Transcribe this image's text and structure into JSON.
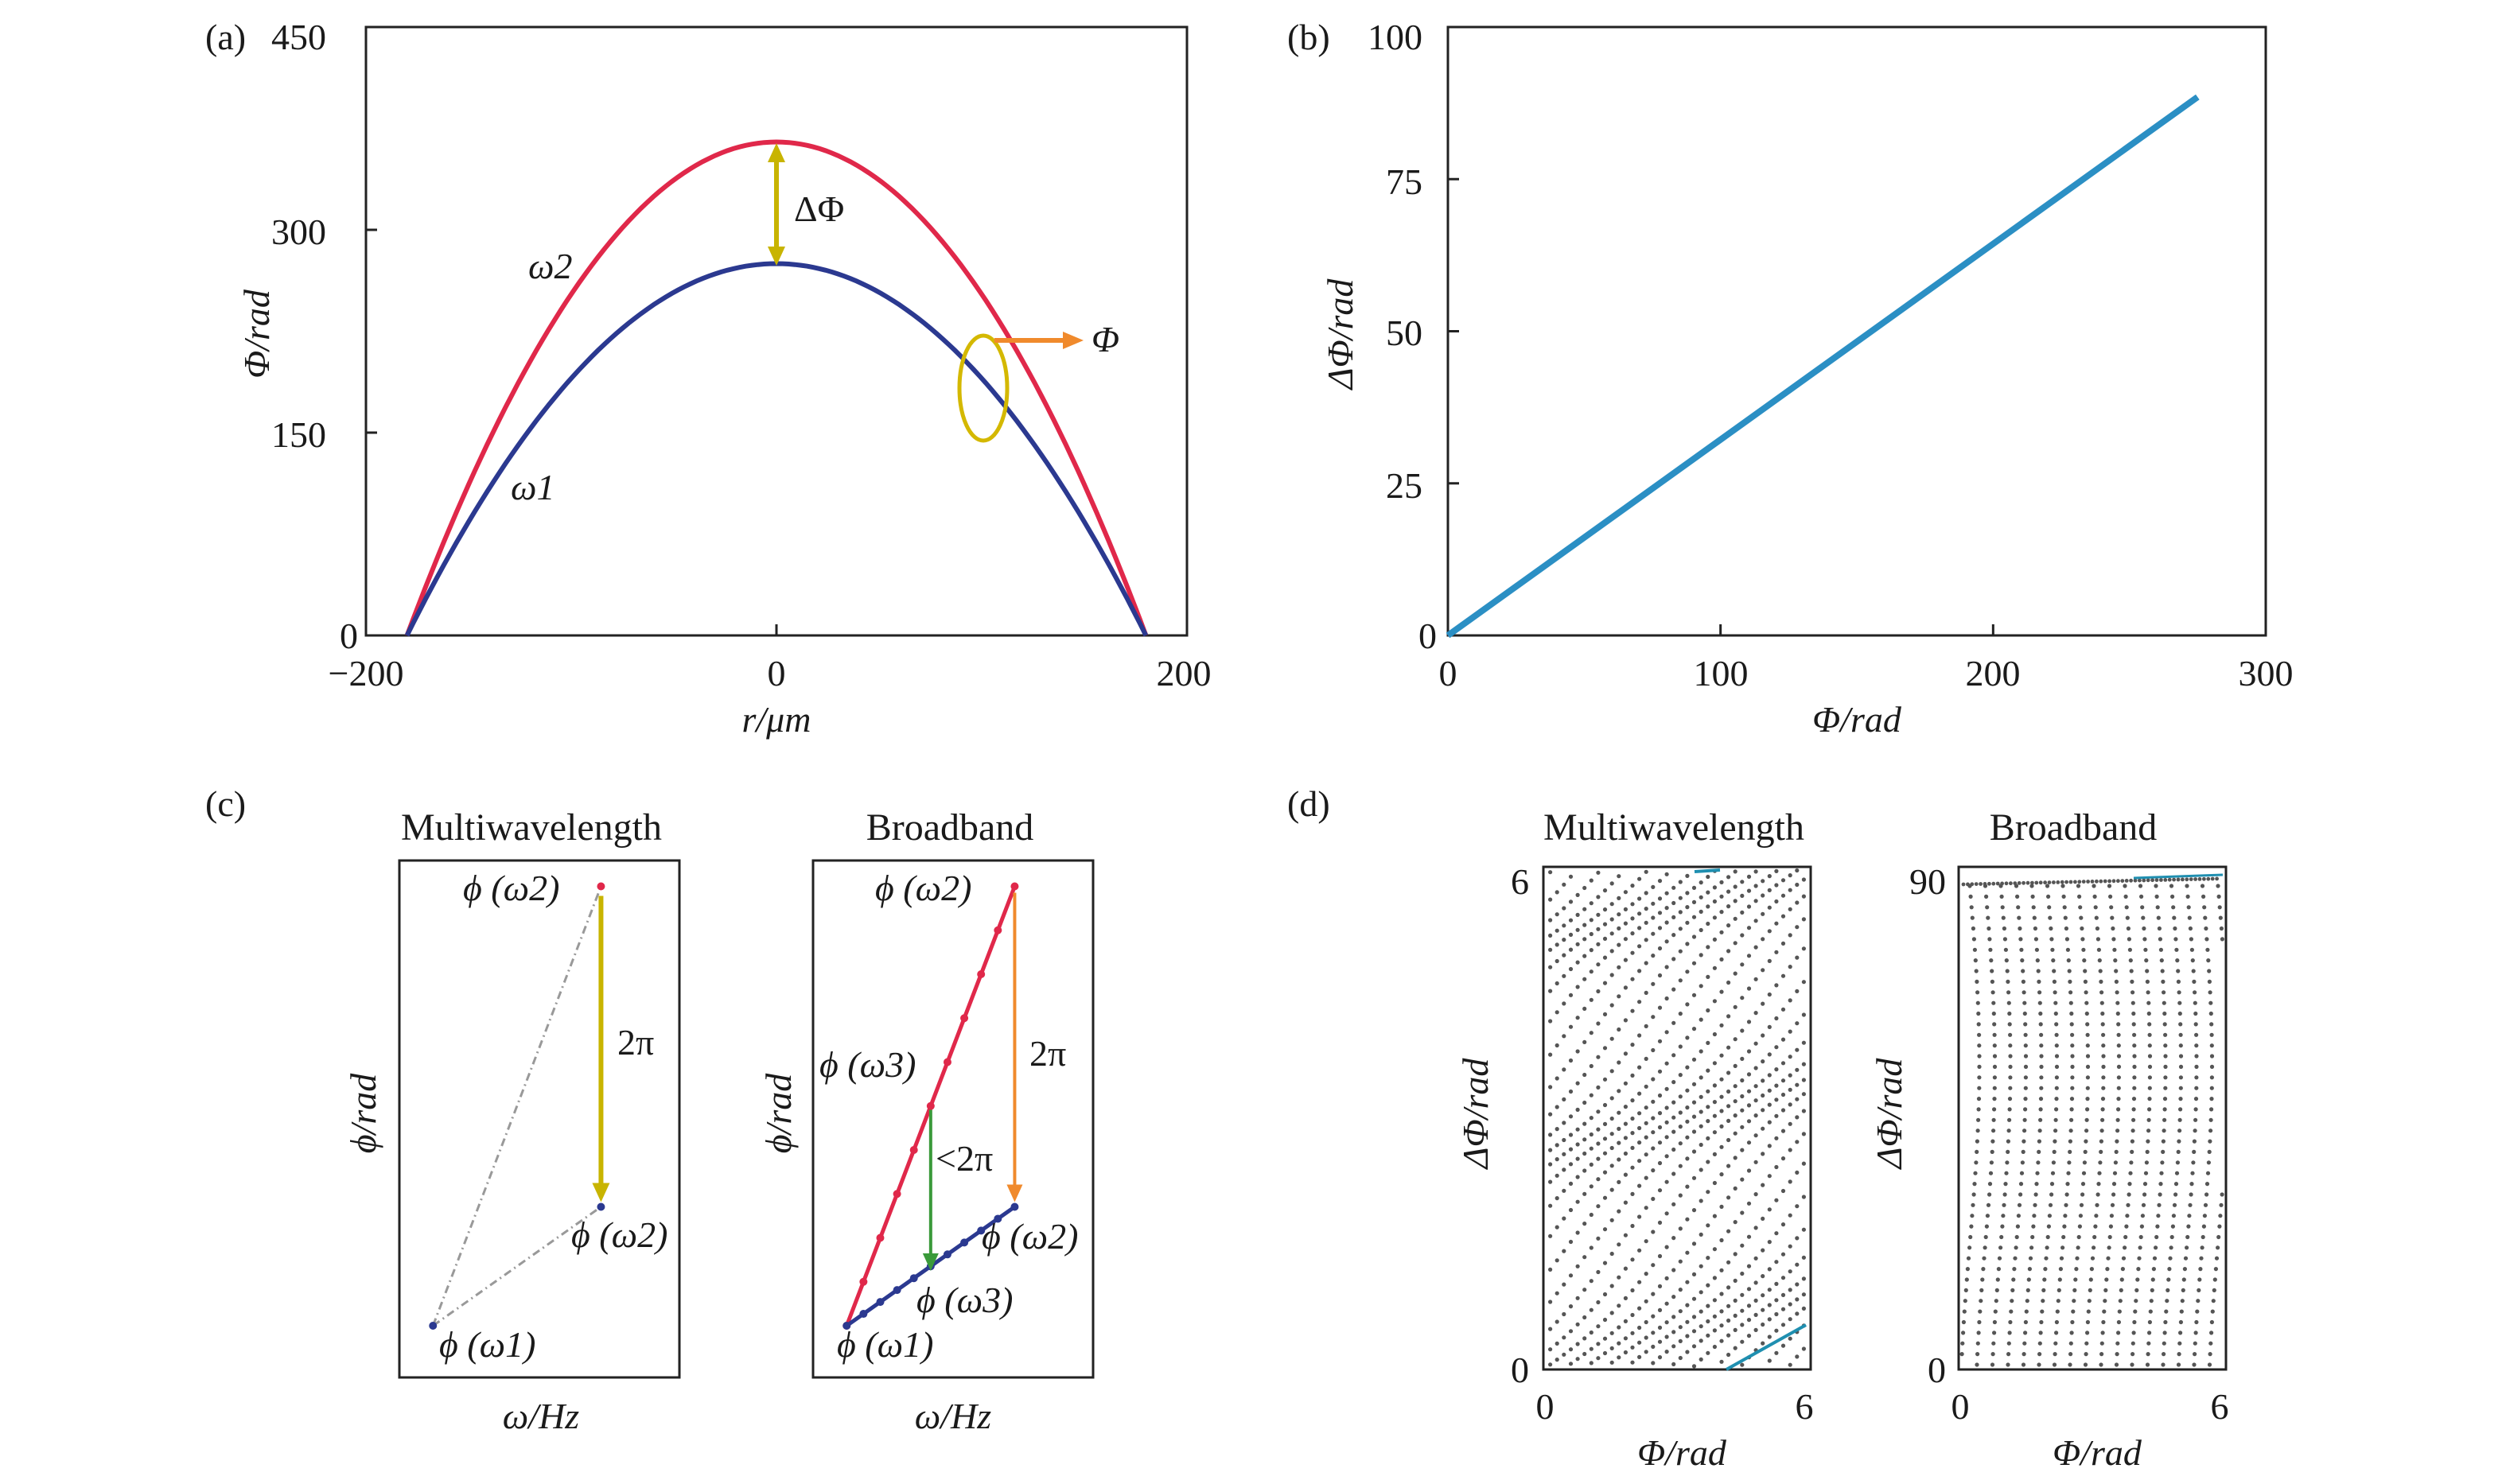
{
  "panel_labels": {
    "a": "(a)",
    "b": "(b)",
    "c": "(c)",
    "d": "(d)"
  },
  "colors": {
    "omega2_curve": "#e0284a",
    "omega1_curve": "#2b3990",
    "delta_arrow": "#c8b400",
    "phi_arrow": "#f08a2c",
    "circle": "#d4b800",
    "line_b": "#2b8fc4",
    "green_arrow": "#3a9a3a",
    "dots": "#555555",
    "teal": "#1f8fb0"
  },
  "chart_data": [
    {
      "type": "line",
      "panel": "a",
      "xlabel": "r/μm",
      "ylabel": "Φ/rad",
      "xlim": [
        -200,
        200
      ],
      "ylim": [
        0,
        450
      ],
      "xticks": [
        "−200",
        "0",
        "200"
      ],
      "yticks": [
        "0",
        "150",
        "300",
        "450"
      ],
      "series": [
        {
          "name": "ω2",
          "peak_x": 0,
          "peak_y": 365,
          "zero_x": [
            -180,
            180
          ]
        },
        {
          "name": "ω1",
          "peak_x": 0,
          "peak_y": 275,
          "zero_x": [
            -180,
            180
          ]
        }
      ],
      "annotations": {
        "delta": "ΔΦ",
        "phi": "Φ",
        "omega2": "ω2",
        "omega1": "ω1"
      }
    },
    {
      "type": "line",
      "panel": "b",
      "xlabel": "Φ/rad",
      "ylabel": "ΔΦ/rad",
      "xlim": [
        0,
        300
      ],
      "ylim": [
        0,
        100
      ],
      "xticks": [
        "0",
        "100",
        "200",
        "300"
      ],
      "yticks": [
        "0",
        "25",
        "50",
        "75",
        "100"
      ],
      "x": [
        0,
        275
      ],
      "y": [
        0,
        88.5
      ]
    },
    {
      "type": "line",
      "panel": "c-left",
      "title": "Multiwavelength",
      "xlabel": "ω/Hz",
      "ylabel": "ϕ/rad",
      "points": [
        {
          "label": "ϕ (ω2)",
          "x": 0.72,
          "y": 0.95
        },
        {
          "label": "ϕ (ω2)",
          "x": 0.72,
          "y": 0.33
        },
        {
          "label": "ϕ (ω1)",
          "x": 0.12,
          "y": 0.1
        }
      ],
      "annotations": {
        "arrow": "2π"
      }
    },
    {
      "type": "line",
      "panel": "c-right",
      "title": "Broadband",
      "xlabel": "ω/Hz",
      "ylabel": "ϕ/rad",
      "points": [
        {
          "label": "ϕ (ω2)",
          "x": 0.72,
          "y": 0.95
        },
        {
          "label": "ϕ (ω3)",
          "x": 0.42,
          "y": 0.53
        },
        {
          "label": "ϕ (ω2)",
          "x": 0.72,
          "y": 0.33
        },
        {
          "label": "ϕ (ω3)",
          "x": 0.42,
          "y": 0.2
        },
        {
          "label": "ϕ (ω1)",
          "x": 0.12,
          "y": 0.1
        }
      ],
      "annotations": {
        "big_arrow": "2π",
        "small_arrow": "<2π"
      }
    },
    {
      "type": "scatter",
      "panel": "d-left",
      "title": "Multiwavelength",
      "xlabel": "Φ/rad",
      "ylabel": "ΔΦ/rad",
      "xlim": [
        0,
        6
      ],
      "ylim": [
        0,
        6
      ],
      "xticks": [
        "0",
        "6"
      ],
      "yticks": [
        "0",
        "6"
      ]
    },
    {
      "type": "scatter",
      "panel": "d-right",
      "title": "Broadband",
      "xlabel": "Φ/rad",
      "ylabel": "ΔΦ/rad",
      "xlim": [
        0,
        6
      ],
      "ylim": [
        0,
        90
      ],
      "xticks": [
        "0",
        "6"
      ],
      "yticks": [
        "0",
        "90"
      ]
    }
  ]
}
